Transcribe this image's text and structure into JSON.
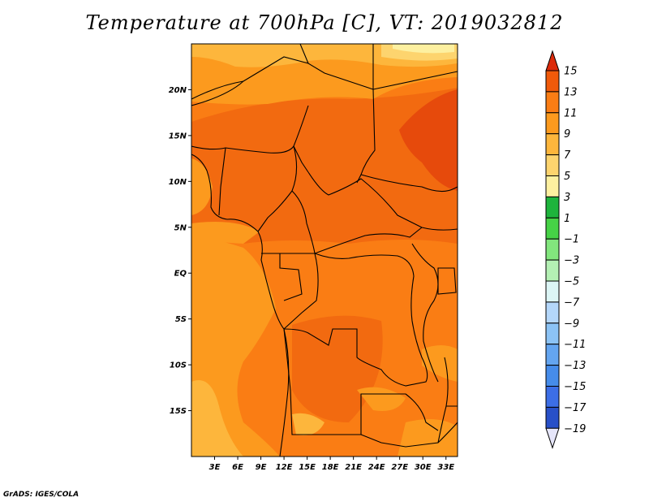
{
  "title": "Temperature at 700hPa [C], VT: 2019032812",
  "footer": "GrADS: IGES/COLA",
  "map": {
    "lon_range": [
      0,
      34.5
    ],
    "lat_range": [
      -20,
      25
    ],
    "lat_ticks": [
      {
        "value": 20,
        "label": "20N"
      },
      {
        "value": 15,
        "label": "15N"
      },
      {
        "value": 10,
        "label": "10N"
      },
      {
        "value": 5,
        "label": "5N"
      },
      {
        "value": 0,
        "label": "EQ"
      },
      {
        "value": -5,
        "label": "5S"
      },
      {
        "value": -10,
        "label": "10S"
      },
      {
        "value": -15,
        "label": "15S"
      }
    ],
    "lon_ticks": [
      {
        "value": 3,
        "label": "3E"
      },
      {
        "value": 6,
        "label": "6E"
      },
      {
        "value": 9,
        "label": "9E"
      },
      {
        "value": 12,
        "label": "12E"
      },
      {
        "value": 15,
        "label": "15E"
      },
      {
        "value": 18,
        "label": "18E"
      },
      {
        "value": 21,
        "label": "21E"
      },
      {
        "value": 24,
        "label": "24E"
      },
      {
        "value": 27,
        "label": "27E"
      },
      {
        "value": 30,
        "label": "30E"
      },
      {
        "value": 33,
        "label": "33E"
      }
    ]
  },
  "colorbar": {
    "labels": [
      "15",
      "13",
      "11",
      "9",
      "7",
      "5",
      "3",
      "1",
      "−1",
      "−3",
      "−5",
      "−7",
      "−9",
      "−11",
      "−13",
      "−15",
      "−17",
      "−19"
    ],
    "colors": [
      "#e63c0a",
      "#f05a0a",
      "#fa7d14",
      "#fc9a1e",
      "#fdb63c",
      "#fdd46e",
      "#fdf0a0",
      "#1eb43c",
      "#46d246",
      "#82e67d",
      "#b4f0b4",
      "#dcf5f5",
      "#b4d7fa",
      "#8cc3f5",
      "#64a5f0",
      "#468cea",
      "#3c6ee6",
      "#2850c8",
      "#1e3cb4"
    ],
    "top_color": "#dc2a0a",
    "bottom_color": "#e6e6fa"
  }
}
